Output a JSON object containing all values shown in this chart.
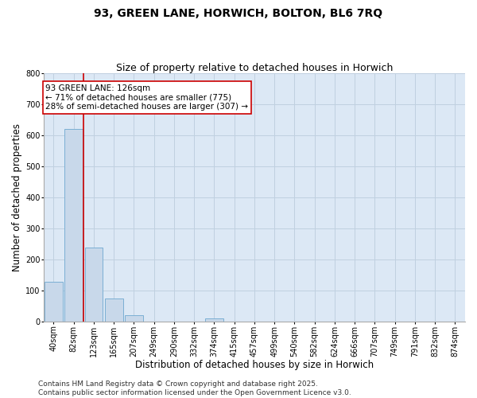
{
  "title": "93, GREEN LANE, HORWICH, BOLTON, BL6 7RQ",
  "subtitle": "Size of property relative to detached houses in Horwich",
  "xlabel": "Distribution of detached houses by size in Horwich",
  "ylabel": "Number of detached properties",
  "bar_labels": [
    "40sqm",
    "82sqm",
    "123sqm",
    "165sqm",
    "207sqm",
    "249sqm",
    "290sqm",
    "332sqm",
    "374sqm",
    "415sqm",
    "457sqm",
    "499sqm",
    "540sqm",
    "582sqm",
    "624sqm",
    "666sqm",
    "707sqm",
    "749sqm",
    "791sqm",
    "832sqm",
    "874sqm"
  ],
  "bar_values": [
    130,
    620,
    240,
    75,
    22,
    0,
    0,
    0,
    10,
    0,
    0,
    0,
    0,
    0,
    0,
    0,
    0,
    0,
    0,
    0,
    0
  ],
  "bar_color": "#c8d8ea",
  "bar_edge_color": "#7bafd4",
  "vline_color": "#cc0000",
  "vline_pos": 1.5,
  "annotation_box_text": "93 GREEN LANE: 126sqm\n← 71% of detached houses are smaller (775)\n28% of semi-detached houses are larger (307) →",
  "annotation_box_color": "#cc0000",
  "annotation_box_bg": "#ffffff",
  "ylim": [
    0,
    800
  ],
  "yticks": [
    0,
    100,
    200,
    300,
    400,
    500,
    600,
    700,
    800
  ],
  "grid_color": "#c0d0e0",
  "bg_color": "#dce8f5",
  "footer": "Contains HM Land Registry data © Crown copyright and database right 2025.\nContains public sector information licensed under the Open Government Licence v3.0.",
  "title_fontsize": 10,
  "subtitle_fontsize": 9,
  "axis_label_fontsize": 8.5,
  "tick_fontsize": 7,
  "footer_fontsize": 6.5,
  "annot_fontsize": 7.5
}
